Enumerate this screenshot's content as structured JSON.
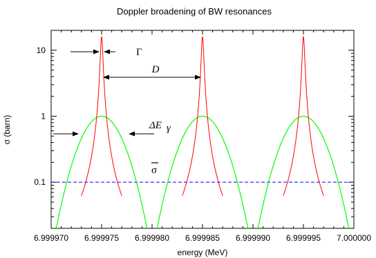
{
  "chart_data": {
    "type": "line",
    "title": "Doppler broadening of BW resonances",
    "xlabel": "energy (MeV)",
    "ylabel": "σ (barn)",
    "xlim": [
      6.99997,
      7.0
    ],
    "ylim": [
      0.02,
      20
    ],
    "y_scale": "log",
    "x_ticks": [
      6.99997,
      6.999975,
      6.99998,
      6.999985,
      6.99999,
      6.999995,
      7.0
    ],
    "x_tick_labels": [
      "6.999970",
      "6.999975",
      "6.999980",
      "6.999985",
      "6.999990",
      "6.999995",
      "7.000000"
    ],
    "y_ticks": [
      0.1,
      1,
      10
    ],
    "y_tick_labels": [
      "0.1",
      "1",
      "10"
    ],
    "grid": false,
    "legend": "none",
    "series": [
      {
        "kind": "breit-wigner",
        "color": "#ff0000",
        "peak_value": 16,
        "centers": [
          6.999975,
          6.999985,
          6.999995
        ],
        "full_width": 2.5e-07
      },
      {
        "kind": "doppler-broadened",
        "color": "#00ff00",
        "peak_value": 1.0,
        "centers": [
          6.999975,
          6.999985,
          6.999995
        ],
        "half_span_at_0_02": 4.5e-06
      },
      {
        "kind": "average",
        "color": "#0000ff",
        "style": "dashed",
        "value": 0.1
      }
    ],
    "annotations": [
      {
        "label": "Γ",
        "meaning": "resonance width"
      },
      {
        "label": "D",
        "meaning": "resonance spacing"
      },
      {
        "label": "ΔE",
        "subscript": "γ",
        "meaning": "Doppler width"
      },
      {
        "label": "σ",
        "overline": true,
        "meaning": "average cross section"
      }
    ]
  }
}
